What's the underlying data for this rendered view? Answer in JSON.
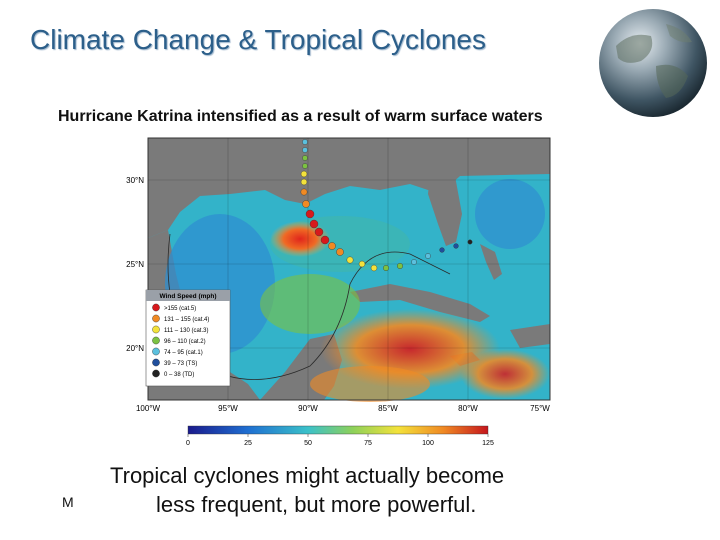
{
  "slide": {
    "title": "Climate Change & Tropical Cyclones",
    "subtitle": "Hurricane Katrina intensified as a result of warm surface waters",
    "caption_line1": "Tropical cyclones might actually become",
    "caption_line2": "less frequent, but more powerful.",
    "mark": "M"
  },
  "map": {
    "lat_labels": [
      "30°N",
      "25°N",
      "20°N"
    ],
    "lon_labels": [
      "100°W",
      "95°W",
      "90°W",
      "85°W",
      "80°W",
      "75°W"
    ],
    "legend": {
      "title": "Wind Speed (mph)",
      "entries": [
        {
          "label": ">155 (cat.5)",
          "color": "#d7191c"
        },
        {
          "label": "131 – 155 (cat.4)",
          "color": "#f08a24"
        },
        {
          "label": "111 – 130 (cat.3)",
          "color": "#f3e23b"
        },
        {
          "label": "96 – 110 (cat.2)",
          "color": "#7cc242"
        },
        {
          "label": "74 – 95 (cat.1)",
          "color": "#5bc0de"
        },
        {
          "label": "39 – 73 (TS)",
          "color": "#1f4e9c"
        },
        {
          "label": "0 – 38 (TD)",
          "color": "#222222"
        }
      ]
    },
    "colorbar": {
      "ticks": [
        "0",
        "25",
        "50",
        "75",
        "100",
        "125"
      ]
    }
  }
}
